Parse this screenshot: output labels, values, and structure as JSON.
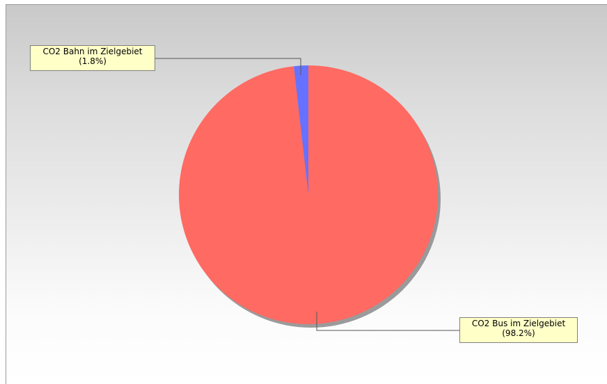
{
  "chart_data": {
    "type": "pie",
    "title": "",
    "slices": [
      {
        "label": "CO2 Bahn im Zielgebiet",
        "percent_label": "(1.8%)",
        "value": 1.8,
        "color": "#6672ff"
      },
      {
        "label": "CO2 Bus im Zielgebiet",
        "percent_label": "(98.2%)",
        "value": 98.2,
        "color": "#ff6a63"
      }
    ],
    "legend": "none",
    "grid": false
  }
}
